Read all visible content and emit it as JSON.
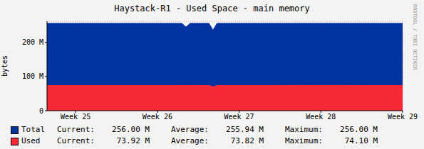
{
  "chart_data": {
    "type": "area",
    "title": "Haystack-R1 - Used Space - main memory",
    "y_label": "bytes",
    "side_text": "RRDTOOL / TOBI OETIKER",
    "x": [
      24.65,
      25.0,
      25.5,
      26.0,
      26.3,
      26.35,
      26.4,
      26.63,
      26.68,
      26.73,
      27.0,
      27.5,
      28.0,
      28.5,
      29.0
    ],
    "xlim": [
      24.65,
      29.0
    ],
    "xticks": [
      {
        "value": 25,
        "label": "Week 25"
      },
      {
        "value": 26,
        "label": "Week 26"
      },
      {
        "value": 27,
        "label": "Week 27"
      },
      {
        "value": 28,
        "label": "Week 28"
      },
      {
        "value": 29,
        "label": "Week 29"
      }
    ],
    "ylim": [
      0,
      262
    ],
    "yticks": [
      0,
      {
        "value": 100,
        "label": "100 M"
      },
      {
        "value": 200,
        "label": "200 M"
      }
    ],
    "grid": true,
    "stat_labels": [
      "Current:",
      "Average:",
      "Maximum:"
    ],
    "series": [
      {
        "name": "Total",
        "color": "#0033a0",
        "values": [
          256,
          256,
          256,
          256,
          256,
          245,
          256,
          256,
          236,
          256,
          256,
          256,
          256,
          256,
          256
        ],
        "stats": [
          "256.00 M",
          "255.94 M",
          "256.00 M"
        ]
      },
      {
        "name": "Used",
        "color": "#f52836",
        "values": [
          73.9,
          73.8,
          73.7,
          73.8,
          73.9,
          73.9,
          73.9,
          74.0,
          70.5,
          73.8,
          73.8,
          73.9,
          74.1,
          73.9,
          73.92
        ],
        "stats": [
          "73.92 M",
          "73.82 M",
          "74.10 M"
        ]
      }
    ]
  }
}
